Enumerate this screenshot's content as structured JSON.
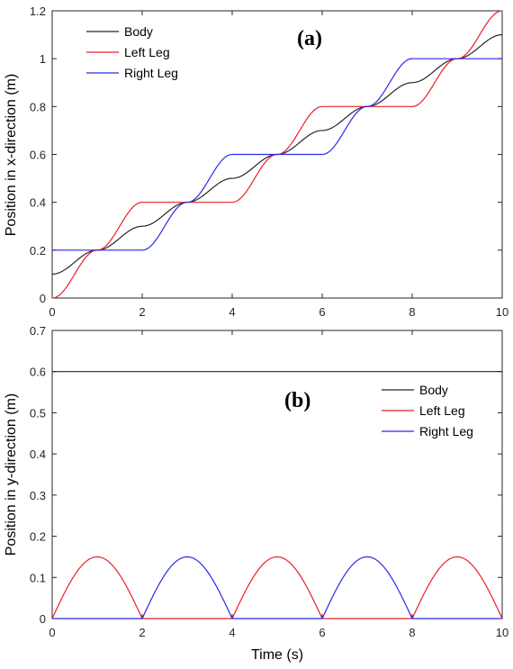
{
  "chart_data": [
    {
      "type": "line",
      "panel_label": "(a)",
      "title": "",
      "xlabel": "",
      "ylabel": "Position in x-direction (m)",
      "xlim": [
        0,
        10
      ],
      "ylim": [
        0,
        1.2
      ],
      "xticks": [
        "0",
        "2",
        "4",
        "6",
        "8",
        "10"
      ],
      "yticks": [
        "0",
        "0.2",
        "0.4",
        "0.6",
        "0.8",
        "1",
        "1.2"
      ],
      "grid": false,
      "legend_position": "top-left",
      "series": [
        {
          "name": "Body",
          "color": "#262626",
          "x": [
            0,
            1,
            2,
            3,
            4,
            5,
            6,
            7,
            8,
            9,
            10
          ],
          "values": [
            0.1,
            0.2,
            0.3,
            0.4,
            0.5,
            0.6,
            0.7,
            0.8,
            0.9,
            1.0,
            1.1
          ]
        },
        {
          "name": "Left Leg",
          "color": "#e8202a",
          "x": [
            0,
            1,
            2,
            3,
            4,
            5,
            6,
            7,
            8,
            9,
            10
          ],
          "values": [
            0,
            0.2,
            0.4,
            0.4,
            0.4,
            0.6,
            0.8,
            0.8,
            0.8,
            1.0,
            1.2
          ]
        },
        {
          "name": "Right Leg",
          "color": "#2a2aeb",
          "x": [
            0,
            1,
            2,
            3,
            4,
            5,
            6,
            7,
            8,
            9,
            10
          ],
          "values": [
            0.2,
            0.2,
            0.2,
            0.4,
            0.6,
            0.6,
            0.6,
            0.8,
            1.0,
            1.0,
            1.0
          ]
        }
      ]
    },
    {
      "type": "line",
      "panel_label": "(b)",
      "title": "",
      "xlabel": "Time (s)",
      "ylabel": "Position in y-direction (m)",
      "xlim": [
        0,
        10
      ],
      "ylim": [
        0,
        0.7
      ],
      "xticks": [
        "0",
        "2",
        "4",
        "6",
        "8",
        "10"
      ],
      "yticks": [
        "0",
        "0.1",
        "0.2",
        "0.3",
        "0.4",
        "0.5",
        "0.6",
        "0.7"
      ],
      "grid": false,
      "legend_position": "top-right",
      "series": [
        {
          "name": "Body",
          "color": "#262626",
          "x": [
            0,
            2,
            4,
            6,
            8,
            10
          ],
          "values": [
            0.6,
            0.6,
            0.6,
            0.6,
            0.6,
            0.6
          ]
        },
        {
          "name": "Left Leg",
          "color": "#e8202a",
          "x": [
            0,
            1,
            2,
            3,
            4,
            5,
            6,
            7,
            8,
            9,
            10
          ],
          "values": [
            0,
            0.15,
            0,
            0,
            0,
            0.15,
            0,
            0,
            0,
            0.15,
            0
          ]
        },
        {
          "name": "Right Leg",
          "color": "#2a2aeb",
          "x": [
            0,
            1,
            2,
            3,
            4,
            5,
            6,
            7,
            8,
            9,
            10
          ],
          "values": [
            0,
            0,
            0,
            0.15,
            0,
            0,
            0,
            0.15,
            0,
            0,
            0
          ]
        }
      ]
    }
  ]
}
